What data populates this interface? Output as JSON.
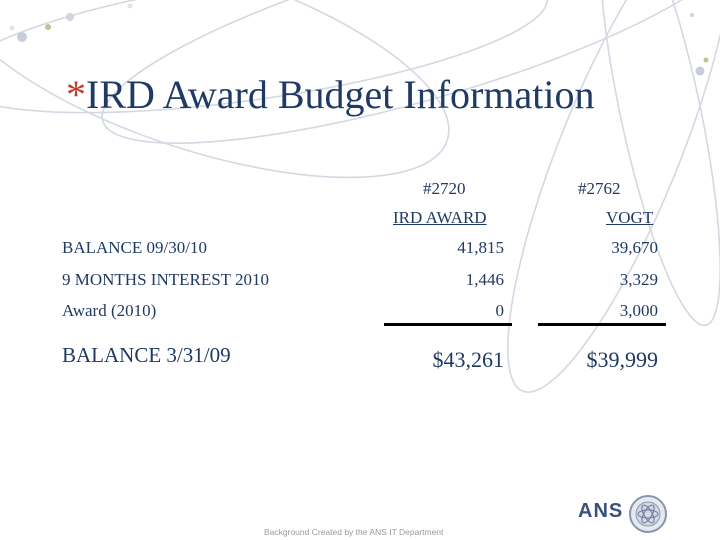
{
  "title": {
    "star": "*",
    "text": "IRD Award Budget Information"
  },
  "columns": [
    {
      "number": "#2720",
      "name": "IRD AWARD"
    },
    {
      "number": "#2762",
      "name": "VOGT"
    }
  ],
  "rows": [
    {
      "label": "BALANCE 09/30/10",
      "values": [
        "41,815",
        "39,670"
      ]
    },
    {
      "label": "9 MONTHS INTEREST 2010",
      "values": [
        "1,446",
        "3,329"
      ]
    },
    {
      "label": "Award (2010)",
      "values": [
        "0",
        "3,000"
      ]
    },
    {
      "label": "BALANCE 3/31/09",
      "values": [
        "$43,261",
        "$39,999"
      ]
    }
  ],
  "footer": {
    "credit": "Background Created by the ANS IT Department"
  },
  "logo": {
    "text": "ANS"
  },
  "colors": {
    "title": "#1f3a63",
    "star": "#c0392b",
    "orbit": "#c9cfdb"
  }
}
